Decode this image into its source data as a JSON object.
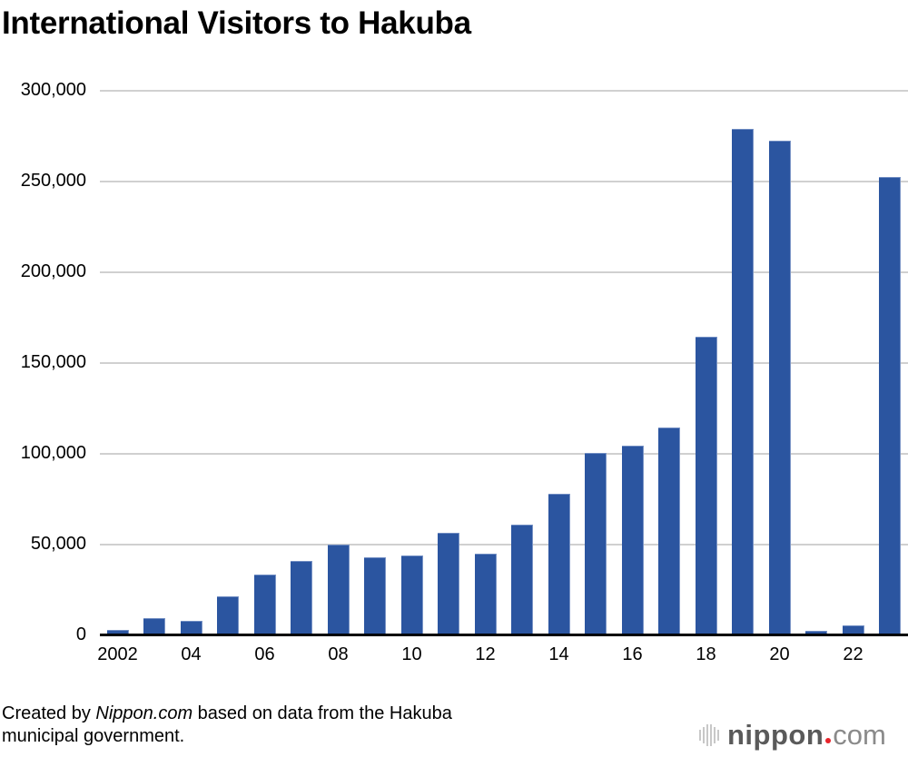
{
  "title": "International Visitors to Hakuba",
  "source": {
    "prefix": "Created by ",
    "italic": "Nippon.com",
    "suffix": " based on data from the Hakuba",
    "line2": "municipal government."
  },
  "logo": {
    "main": "nippon",
    "tld": "com",
    "dot_color": "#e8232a"
  },
  "colors": {
    "bar": "#2b55a0",
    "grid": "#d0d0d0",
    "axis": "#000000"
  },
  "chart_data": {
    "type": "bar",
    "title": "International Visitors to Hakuba",
    "xlabel": "",
    "ylabel": "",
    "ylim": [
      0,
      300000
    ],
    "yticks": [
      0,
      50000,
      100000,
      150000,
      200000,
      250000,
      300000
    ],
    "ytick_labels": [
      "0",
      "50,000",
      "100,000",
      "150,000",
      "200,000",
      "250,000",
      "300,000"
    ],
    "categories": [
      "2002",
      "2003",
      "2004",
      "2005",
      "2006",
      "2007",
      "2008",
      "2009",
      "2010",
      "2011",
      "2012",
      "2013",
      "2014",
      "2015",
      "2016",
      "2017",
      "2018",
      "2019",
      "2020",
      "2021",
      "2022",
      "2023"
    ],
    "xtick_labels": [
      "2002",
      "",
      "04",
      "",
      "06",
      "",
      "08",
      "",
      "10",
      "",
      "12",
      "",
      "14",
      "",
      "16",
      "",
      "18",
      "",
      "20",
      "",
      "22",
      ""
    ],
    "values": [
      3000,
      9500,
      8000,
      21500,
      33500,
      41000,
      49800,
      43000,
      43800,
      56200,
      45000,
      60700,
      77800,
      100500,
      104500,
      114200,
      164500,
      278900,
      272300,
      2300,
      5300,
      252400
    ],
    "grid": true,
    "legend": null
  }
}
